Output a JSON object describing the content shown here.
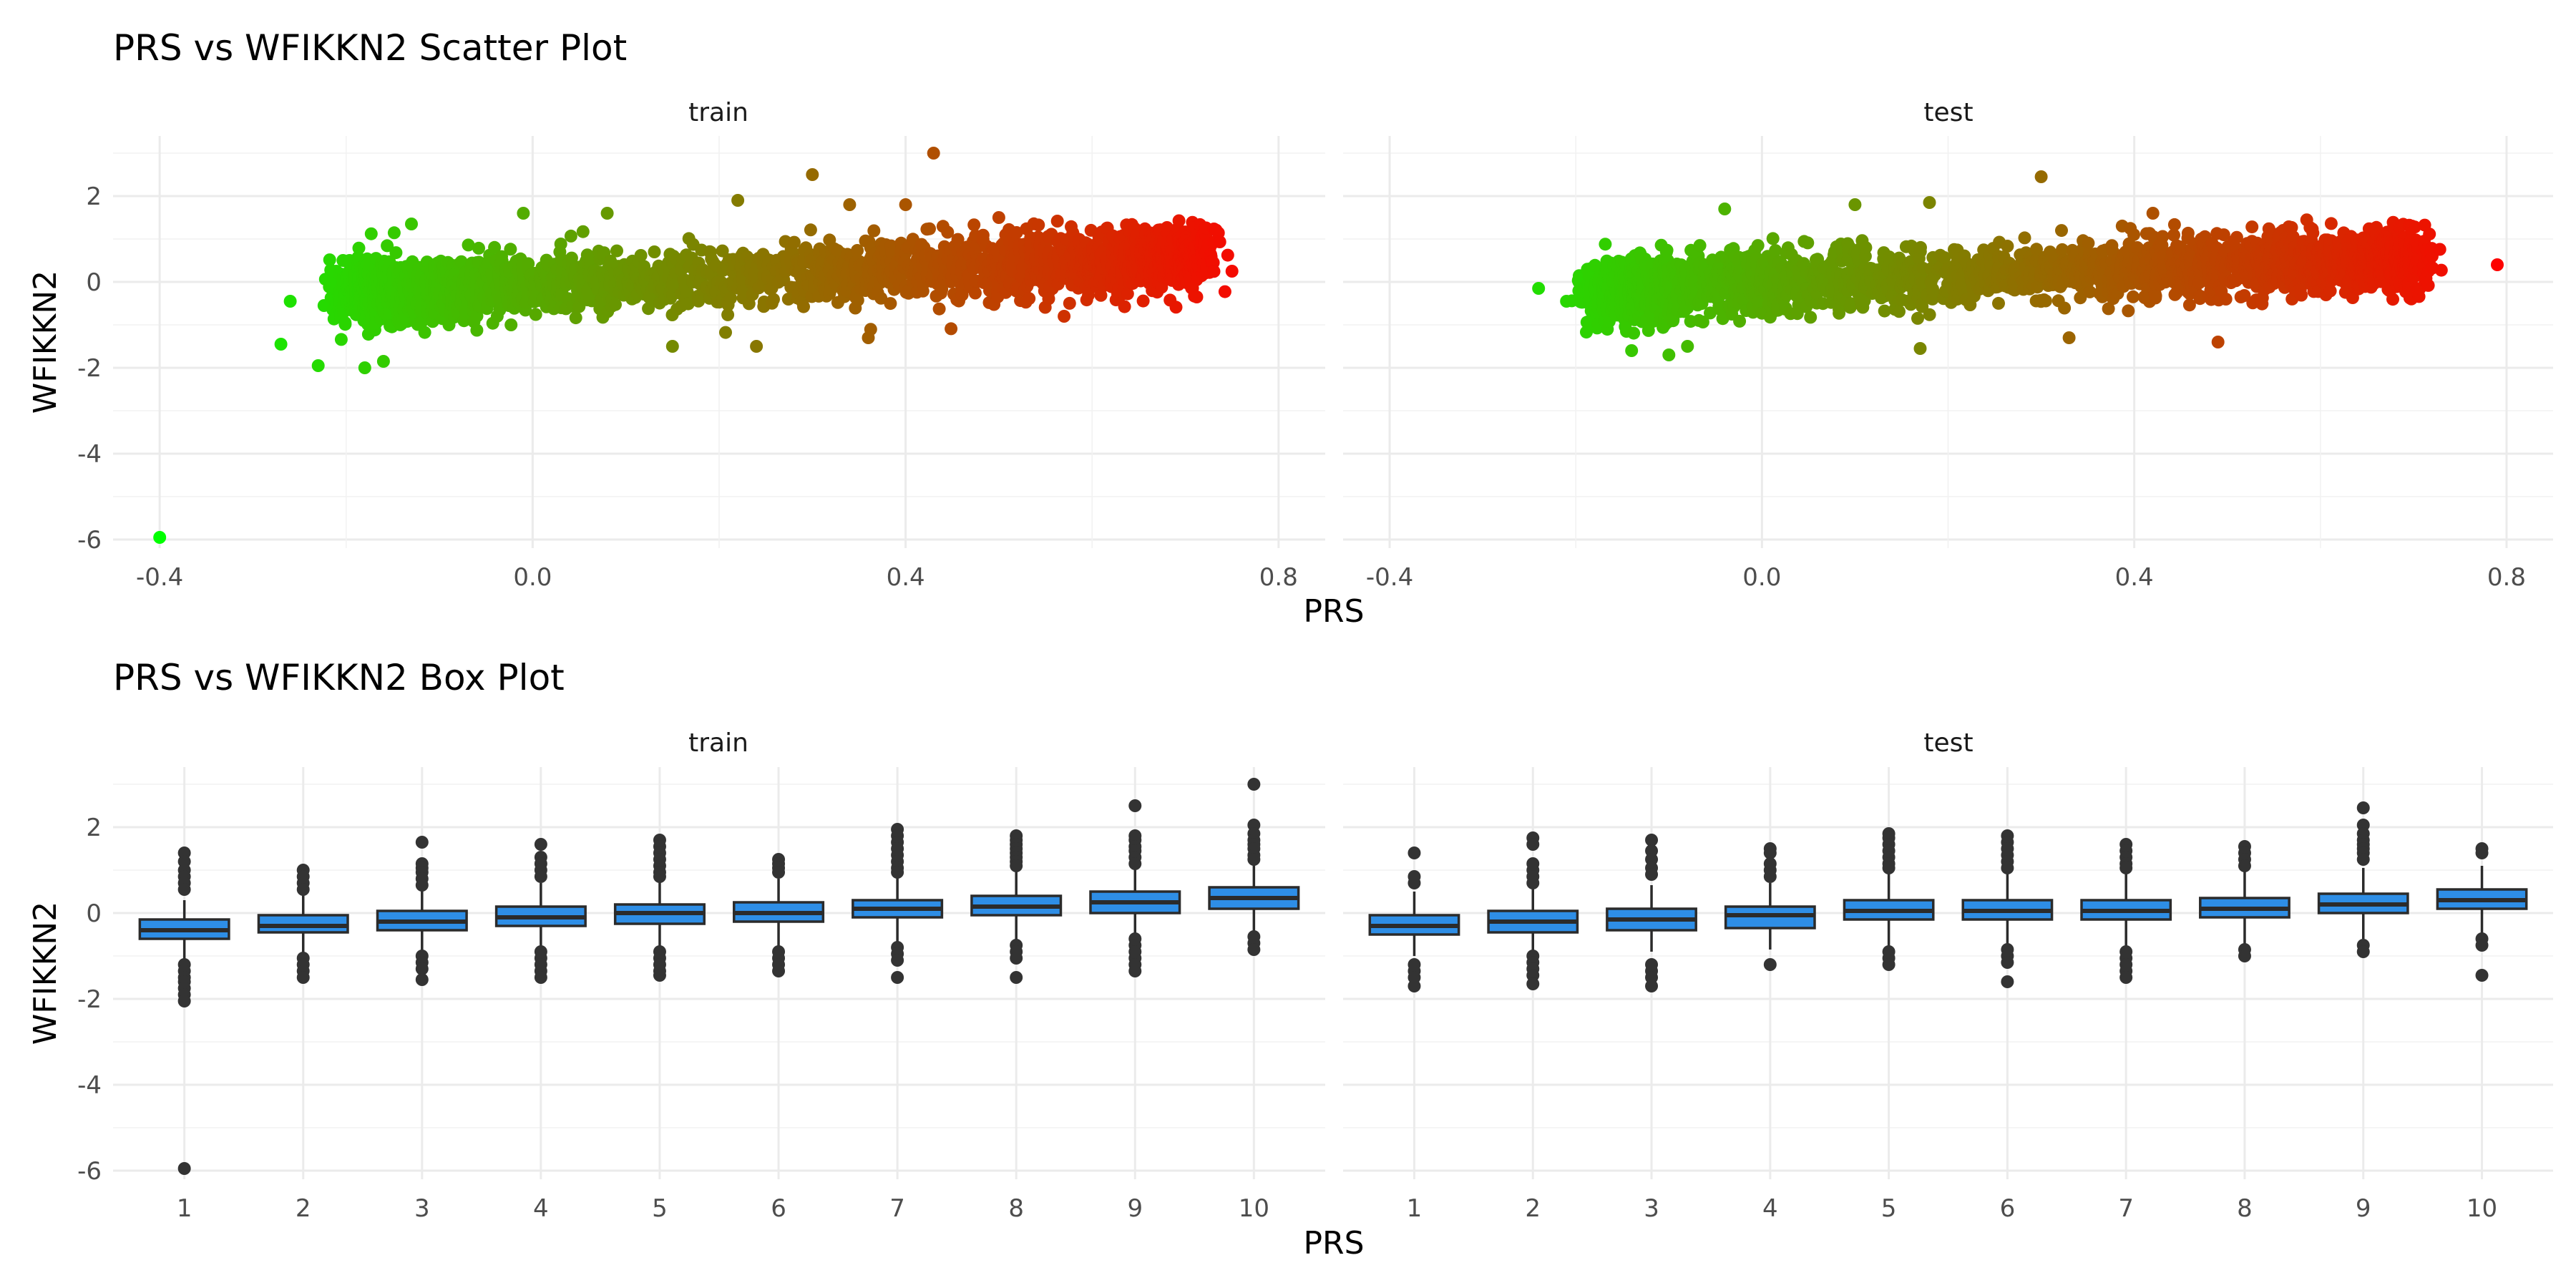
{
  "scatter": {
    "title": "PRS vs WFIKKN2 Scatter Plot",
    "xlabel": "PRS",
    "ylabel": "WFIKKN2"
  },
  "box": {
    "title": "PRS vs WFIKKN2 Box Plot",
    "xlabel": "PRS",
    "ylabel": "WFIKKN2"
  },
  "chart_data": [
    {
      "type": "scatter",
      "title": "PRS vs WFIKKN2 Scatter Plot",
      "xlabel": "PRS",
      "ylabel": "WFIKKN2",
      "xlim": [
        -0.45,
        0.85
      ],
      "ylim": [
        -6.2,
        3.4
      ],
      "x_ticks": [
        "-0.4",
        "0.0",
        "0.4",
        "0.8"
      ],
      "x_tick_values": [
        -0.4,
        0.0,
        0.4,
        0.8
      ],
      "y_ticks": [
        "-6",
        "-4",
        "-2",
        "0",
        "2"
      ],
      "y_tick_values": [
        -6,
        -4,
        -2,
        0,
        2
      ],
      "grid": true,
      "color_gradient": {
        "low": "#00ff00",
        "high": "#ff0000",
        "mapped_to": "PRS"
      },
      "facets": [
        {
          "name": "train",
          "trend": {
            "x_range": [
              -0.2,
              0.72
            ],
            "intercept": -0.07,
            "slope": 0.87,
            "spread": 0.36
          },
          "points": [
            {
              "x": -0.4,
              "y": -5.95
            },
            {
              "x": 0.43,
              "y": 3.0
            },
            {
              "x": 0.3,
              "y": 2.5
            },
            {
              "x": 0.22,
              "y": 1.9
            },
            {
              "x": -0.26,
              "y": -0.45
            },
            {
              "x": -0.27,
              "y": -1.45
            },
            {
              "x": -0.23,
              "y": -1.95
            },
            {
              "x": -0.18,
              "y": -2.0
            },
            {
              "x": -0.16,
              "y": -1.85
            },
            {
              "x": -0.13,
              "y": 1.35
            },
            {
              "x": -0.01,
              "y": 1.6
            },
            {
              "x": 0.08,
              "y": 1.6
            },
            {
              "x": 0.75,
              "y": 0.25
            },
            {
              "x": 0.73,
              "y": 0.45
            },
            {
              "x": 0.71,
              "y": 1.3
            },
            {
              "x": 0.57,
              "y": -0.8
            },
            {
              "x": 0.36,
              "y": -1.3
            },
            {
              "x": 0.24,
              "y": -1.5
            },
            {
              "x": 0.15,
              "y": -1.5
            },
            {
              "x": 0.34,
              "y": 1.8
            },
            {
              "x": 0.4,
              "y": 1.8
            },
            {
              "x": 0.5,
              "y": 1.5
            }
          ]
        },
        {
          "name": "test",
          "trend": {
            "x_range": [
              -0.18,
              0.7
            ],
            "intercept": -0.05,
            "slope": 0.85,
            "spread": 0.36
          },
          "points": [
            {
              "x": 0.79,
              "y": 0.4
            },
            {
              "x": 0.3,
              "y": 2.45
            },
            {
              "x": -0.24,
              "y": -0.15
            },
            {
              "x": -0.21,
              "y": -0.45
            },
            {
              "x": -0.14,
              "y": -1.6
            },
            {
              "x": -0.1,
              "y": -1.7
            },
            {
              "x": -0.08,
              "y": -1.5
            },
            {
              "x": -0.04,
              "y": 1.7
            },
            {
              "x": 0.1,
              "y": 1.8
            },
            {
              "x": 0.18,
              "y": 1.85
            },
            {
              "x": 0.33,
              "y": -1.3
            },
            {
              "x": 0.49,
              "y": -1.4
            },
            {
              "x": 0.17,
              "y": -1.55
            },
            {
              "x": 0.72,
              "y": 0.6
            },
            {
              "x": 0.7,
              "y": 0.8
            },
            {
              "x": 0.56,
              "y": 1.2
            },
            {
              "x": 0.66,
              "y": 1.1
            },
            {
              "x": 0.42,
              "y": 1.6
            }
          ]
        }
      ]
    },
    {
      "type": "box",
      "title": "PRS vs WFIKKN2 Box Plot",
      "xlabel": "PRS",
      "ylabel": "WFIKKN2",
      "categories": [
        "1",
        "2",
        "3",
        "4",
        "5",
        "6",
        "7",
        "8",
        "9",
        "10"
      ],
      "ylim": [
        -6.2,
        3.4
      ],
      "y_ticks": [
        "-6",
        "-4",
        "-2",
        "0",
        "2"
      ],
      "y_tick_values": [
        -6,
        -4,
        -2,
        0,
        2
      ],
      "grid": true,
      "box_fill": "#2e8ee6",
      "box_stroke": "#2b2b2b",
      "facets": [
        {
          "name": "train",
          "boxes": [
            {
              "q1": -0.6,
              "median": -0.4,
              "q3": -0.15,
              "whisker_low": -1.1,
              "whisker_high": 0.3,
              "outliers": [
                1.4,
                1.2,
                1.0,
                0.85,
                0.7,
                0.55,
                -1.2,
                -1.35,
                -1.5,
                -1.6,
                -1.75,
                -1.9,
                -2.05,
                -5.95
              ]
            },
            {
              "q1": -0.45,
              "median": -0.3,
              "q3": -0.05,
              "whisker_low": -0.95,
              "whisker_high": 0.45,
              "outliers": [
                1.0,
                0.85,
                0.7,
                0.55,
                -1.05,
                -1.2,
                -1.35,
                -1.5
              ]
            },
            {
              "q1": -0.4,
              "median": -0.2,
              "q3": 0.05,
              "whisker_low": -0.95,
              "whisker_high": 0.6,
              "outliers": [
                1.65,
                1.15,
                1.05,
                0.95,
                0.8,
                0.65,
                -1.0,
                -1.15,
                -1.3,
                -1.55
              ]
            },
            {
              "q1": -0.3,
              "median": -0.1,
              "q3": 0.15,
              "whisker_low": -0.85,
              "whisker_high": 0.7,
              "outliers": [
                1.6,
                1.3,
                1.15,
                1.0,
                0.85,
                -0.9,
                -1.05,
                -1.2,
                -1.35,
                -1.5
              ]
            },
            {
              "q1": -0.25,
              "median": 0.0,
              "q3": 0.2,
              "whisker_low": -0.85,
              "whisker_high": 0.75,
              "outliers": [
                1.7,
                1.55,
                1.4,
                1.25,
                1.1,
                0.95,
                0.85,
                -0.9,
                -1.05,
                -1.2,
                -1.35,
                -1.45
              ]
            },
            {
              "q1": -0.2,
              "median": 0.0,
              "q3": 0.25,
              "whisker_low": -0.8,
              "whisker_high": 0.8,
              "outliers": [
                1.25,
                1.15,
                1.05,
                0.95,
                -0.9,
                -1.05,
                -1.2,
                -1.35
              ]
            },
            {
              "q1": -0.1,
              "median": 0.1,
              "q3": 0.3,
              "whisker_low": -0.75,
              "whisker_high": 0.9,
              "outliers": [
                1.95,
                1.8,
                1.65,
                1.5,
                1.35,
                1.2,
                1.05,
                0.95,
                -0.8,
                -0.95,
                -1.1,
                -1.5
              ]
            },
            {
              "q1": -0.05,
              "median": 0.15,
              "q3": 0.4,
              "whisker_low": -0.7,
              "whisker_high": 1.0,
              "outliers": [
                1.8,
                1.7,
                1.6,
                1.5,
                1.4,
                1.3,
                1.2,
                1.1,
                -0.75,
                -0.9,
                -1.05,
                -1.5
              ]
            },
            {
              "q1": 0.0,
              "median": 0.25,
              "q3": 0.5,
              "whisker_low": -0.55,
              "whisker_high": 1.05,
              "outliers": [
                2.5,
                1.8,
                1.7,
                1.55,
                1.45,
                1.3,
                1.15,
                -0.6,
                -0.75,
                -0.9,
                -1.05,
                -1.2,
                -1.35
              ]
            },
            {
              "q1": 0.1,
              "median": 0.35,
              "q3": 0.6,
              "whisker_low": -0.5,
              "whisker_high": 1.15,
              "outliers": [
                3.0,
                2.05,
                1.85,
                1.7,
                1.6,
                1.5,
                1.35,
                1.25,
                -0.55,
                -0.7,
                -0.85
              ]
            }
          ]
        },
        {
          "name": "test",
          "boxes": [
            {
              "q1": -0.5,
              "median": -0.3,
              "q3": -0.05,
              "whisker_low": -1.0,
              "whisker_high": 0.5,
              "outliers": [
                1.4,
                0.85,
                0.7,
                -1.2,
                -1.35,
                -1.5,
                -1.7
              ]
            },
            {
              "q1": -0.45,
              "median": -0.2,
              "q3": 0.05,
              "whisker_low": -0.95,
              "whisker_high": 0.6,
              "outliers": [
                1.75,
                1.6,
                1.15,
                1.0,
                0.85,
                0.7,
                -1.0,
                -1.15,
                -1.3,
                -1.45,
                -1.65
              ]
            },
            {
              "q1": -0.4,
              "median": -0.15,
              "q3": 0.1,
              "whisker_low": -0.9,
              "whisker_high": 0.65,
              "outliers": [
                1.7,
                1.45,
                1.25,
                1.05,
                0.9,
                -1.2,
                -1.35,
                -1.5,
                -1.7
              ]
            },
            {
              "q1": -0.35,
              "median": -0.05,
              "q3": 0.15,
              "whisker_low": -0.85,
              "whisker_high": 0.7,
              "outliers": [
                1.5,
                1.4,
                1.15,
                1.0,
                0.85,
                -1.2
              ]
            },
            {
              "q1": -0.15,
              "median": 0.05,
              "q3": 0.3,
              "whisker_low": -0.8,
              "whisker_high": 0.95,
              "outliers": [
                1.85,
                1.75,
                1.6,
                1.45,
                1.3,
                1.15,
                1.05,
                -0.9,
                -1.05,
                -1.2
              ]
            },
            {
              "q1": -0.15,
              "median": 0.05,
              "q3": 0.3,
              "whisker_low": -0.8,
              "whisker_high": 0.95,
              "outliers": [
                1.8,
                1.65,
                1.5,
                1.35,
                1.2,
                1.05,
                -0.85,
                -1.0,
                -1.15,
                -1.6
              ]
            },
            {
              "q1": -0.15,
              "median": 0.05,
              "q3": 0.3,
              "whisker_low": -0.8,
              "whisker_high": 0.95,
              "outliers": [
                1.6,
                1.45,
                1.3,
                1.15,
                1.05,
                -0.9,
                -1.05,
                -1.2,
                -1.35,
                -1.5
              ]
            },
            {
              "q1": -0.1,
              "median": 0.1,
              "q3": 0.35,
              "whisker_low": -0.75,
              "whisker_high": 1.0,
              "outliers": [
                1.55,
                1.4,
                1.25,
                1.1,
                -0.85,
                -1.0
              ]
            },
            {
              "q1": 0.0,
              "median": 0.2,
              "q3": 0.45,
              "whisker_low": -0.6,
              "whisker_high": 1.05,
              "outliers": [
                2.45,
                2.05,
                1.85,
                1.7,
                1.6,
                1.5,
                1.4,
                1.25,
                -0.75,
                -0.9
              ]
            },
            {
              "q1": 0.1,
              "median": 0.3,
              "q3": 0.55,
              "whisker_low": -0.5,
              "whisker_high": 1.1,
              "outliers": [
                1.5,
                1.4,
                -0.6,
                -0.75,
                -1.45
              ]
            }
          ]
        }
      ]
    }
  ]
}
